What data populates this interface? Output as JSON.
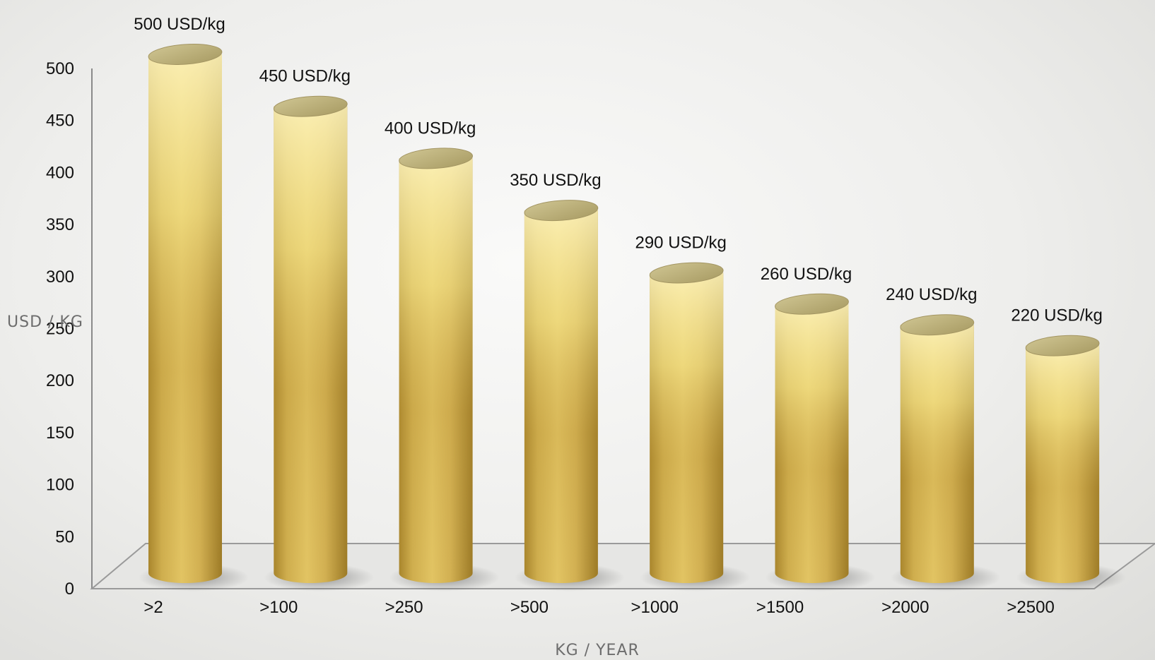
{
  "chart_data": {
    "type": "bar",
    "categories": [
      ">2",
      ">100",
      ">250",
      ">500",
      ">1000",
      ">1500",
      ">2000",
      ">2500"
    ],
    "values": [
      500,
      450,
      400,
      350,
      290,
      260,
      240,
      220
    ],
    "data_labels": [
      "500 USD/kg",
      "450 USD/kg",
      "400 USD/kg",
      "350 USD/kg",
      "290 USD/kg",
      "260 USD/kg",
      "240 USD/kg",
      "220 USD/kg"
    ],
    "xlabel": "KG / YEAR",
    "ylabel": "USD / KG",
    "ylim": [
      0,
      500
    ],
    "yticks": [
      0,
      50,
      100,
      150,
      200,
      250,
      300,
      350,
      400,
      450,
      500
    ],
    "grid": false,
    "legend": "none",
    "bar_shape": "cylinder",
    "colors": {
      "bar_top": "#b8ad78",
      "bar_light": "#f5e79a",
      "bar_mid": "#d9b957",
      "bar_dark": "#b08a30",
      "axis": "#8a8a8a"
    }
  }
}
